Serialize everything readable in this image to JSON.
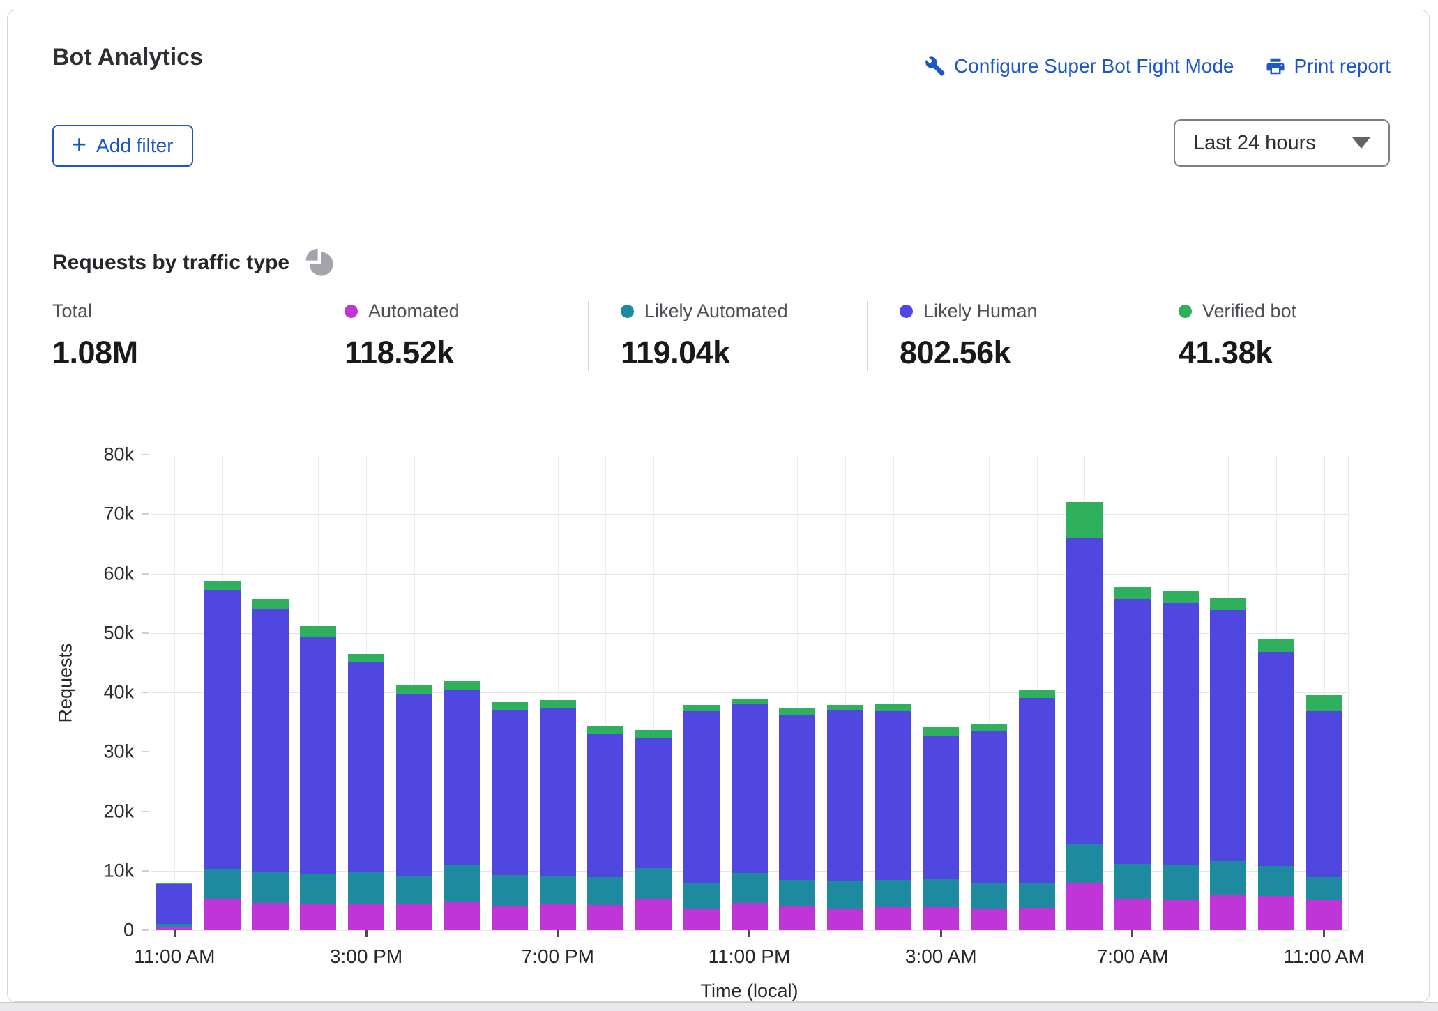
{
  "header": {
    "title": "Bot Analytics",
    "configure_label": "Configure Super Bot Fight Mode",
    "print_label": "Print report",
    "add_filter_label": "Add filter",
    "time_range": "Last 24 hours"
  },
  "section": {
    "title": "Requests by traffic type"
  },
  "stats": [
    {
      "label": "Total",
      "value": "1.08M",
      "color": null
    },
    {
      "label": "Automated",
      "value": "118.52k",
      "color": "#bf35d8"
    },
    {
      "label": "Likely Automated",
      "value": "119.04k",
      "color": "#1d8a9f"
    },
    {
      "label": "Likely Human",
      "value": "802.56k",
      "color": "#5046e0"
    },
    {
      "label": "Verified bot",
      "value": "41.38k",
      "color": "#2eb05c"
    }
  ],
  "chart_data": {
    "type": "bar",
    "stacked": true,
    "title": "Requests by traffic type",
    "xlabel": "Time (local)",
    "ylabel": "Requests",
    "ylim": [
      0,
      80000
    ],
    "grid": true,
    "y_tick_values": [
      0,
      10000,
      20000,
      30000,
      40000,
      50000,
      60000,
      70000,
      80000
    ],
    "y_tick_labels": [
      "0",
      "10k",
      "20k",
      "30k",
      "40k",
      "50k",
      "60k",
      "70k",
      "80k"
    ],
    "categories": [
      "11:00 AM",
      "12:00 PM",
      "1:00 PM",
      "2:00 PM",
      "3:00 PM",
      "4:00 PM",
      "5:00 PM",
      "6:00 PM",
      "7:00 PM",
      "8:00 PM",
      "9:00 PM",
      "10:00 PM",
      "11:00 PM",
      "12:00 AM",
      "1:00 AM",
      "2:00 AM",
      "3:00 AM",
      "4:00 AM",
      "5:00 AM",
      "6:00 AM",
      "7:00 AM",
      "8:00 AM",
      "9:00 AM",
      "10:00 AM",
      "11:00 AM"
    ],
    "x_labeled_indices": [
      0,
      4,
      8,
      12,
      16,
      20,
      24
    ],
    "series": [
      {
        "name": "Automated",
        "color": "#bf35d8",
        "values": [
          500,
          5200,
          4600,
          4400,
          4500,
          4400,
          4800,
          4100,
          4400,
          4200,
          5200,
          3600,
          4600,
          4100,
          3500,
          3900,
          3900,
          3600,
          3800,
          8000,
          5200,
          5000,
          6000,
          5800,
          5000
        ]
      },
      {
        "name": "Likely Automated",
        "color": "#1d8a9f",
        "values": [
          600,
          5100,
          5200,
          5000,
          5300,
          4800,
          6100,
          5200,
          4800,
          4700,
          5200,
          4400,
          5000,
          4400,
          4800,
          4500,
          4800,
          4300,
          4200,
          6600,
          5900,
          5900,
          5600,
          5000,
          3900
        ]
      },
      {
        "name": "Likely Human",
        "color": "#5046e0",
        "values": [
          6600,
          47000,
          44200,
          39900,
          35300,
          30600,
          29400,
          27700,
          28200,
          24100,
          22000,
          28800,
          28500,
          27800,
          28600,
          28400,
          24000,
          25500,
          31100,
          51300,
          44600,
          44100,
          42300,
          36000,
          27900
        ]
      },
      {
        "name": "Verified bot",
        "color": "#2eb05c",
        "values": [
          300,
          1300,
          1700,
          1800,
          1300,
          1500,
          1600,
          1400,
          1300,
          1400,
          1300,
          1100,
          900,
          1000,
          1000,
          1300,
          1400,
          1300,
          1300,
          6100,
          2000,
          2100,
          2100,
          2200,
          2700
        ]
      }
    ]
  }
}
